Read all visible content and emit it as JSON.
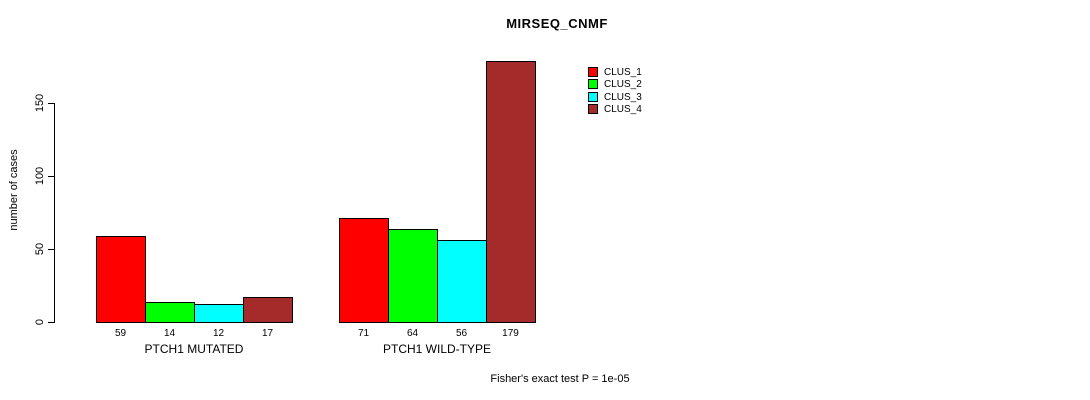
{
  "chart_data": {
    "type": "bar",
    "title": "MIRSEQ_CNMF",
    "ylabel": "number of cases",
    "xlabel": "",
    "categories": [
      "PTCH1 MUTATED",
      "PTCH1 WILD-TYPE"
    ],
    "series": [
      {
        "name": "CLUS_1",
        "color": "#ff0000",
        "values": [
          59,
          71
        ]
      },
      {
        "name": "CLUS_2",
        "color": "#00ff00",
        "values": [
          14,
          64
        ]
      },
      {
        "name": "CLUS_3",
        "color": "#00ffff",
        "values": [
          12,
          56
        ]
      },
      {
        "name": "CLUS_4",
        "color": "#a52a2a",
        "values": [
          17,
          179
        ]
      }
    ],
    "value_labels": [
      [
        59,
        14,
        12,
        17
      ],
      [
        71,
        64,
        56,
        179
      ]
    ],
    "yticks": [
      0,
      50,
      100,
      150
    ],
    "ylim": [
      0,
      179
    ],
    "grid": false,
    "legend_position": "top-right",
    "annotation": "Fisher's exact test P = 1e-05",
    "axis_color": "#000000",
    "text_color": "#000000",
    "background_color": "#ffffff"
  }
}
